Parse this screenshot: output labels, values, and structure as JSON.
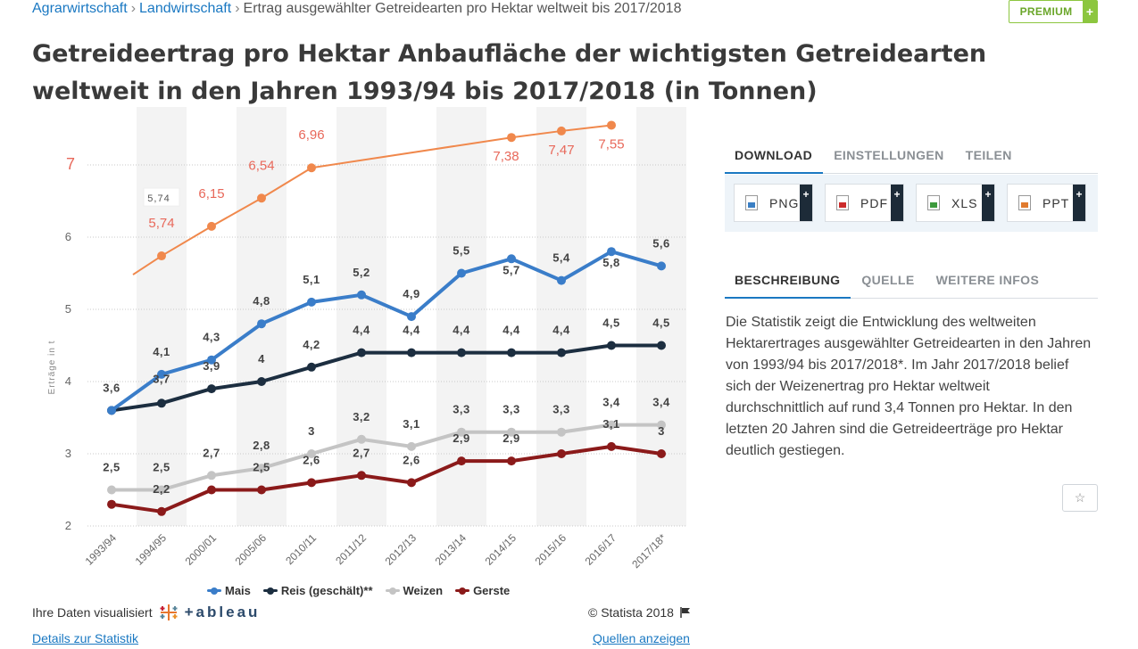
{
  "breadcrumb": {
    "items": [
      "Agrarwirtschaft",
      "Landwirtschaft"
    ],
    "current": "Ertrag ausgewählter Getreidearten pro Hektar weltweit bis 2017/2018"
  },
  "premium": {
    "label": "PREMIUM",
    "plus": "+"
  },
  "title": "Getreideertrag pro Hektar Anbaufläche der wichtigsten Getreidearten weltweit in den Jahren 1993/94 bis 2017/2018 (in Tonnen)",
  "chart_data": {
    "type": "line",
    "categories": [
      "1993/94",
      "1994/95",
      "2000/01",
      "2005/06",
      "2010/11",
      "2011/12",
      "2012/13",
      "2013/14",
      "2014/15",
      "2015/16",
      "2016/17",
      "2017/18*"
    ],
    "ylabel": "Erträge in t",
    "yticks": [
      "2",
      "3",
      "4",
      "5",
      "6",
      "7"
    ],
    "ylim": [
      2,
      7.55
    ],
    "grid": true,
    "legend_position": "bottom",
    "series": [
      {
        "name": "Mais",
        "color": "#3a7dc9",
        "values": [
          3.6,
          4.1,
          4.3,
          4.8,
          5.1,
          5.2,
          4.9,
          5.5,
          5.7,
          5.4,
          5.8,
          5.6
        ],
        "labels": [
          "3,6",
          "4,1",
          "4,3",
          "4,8",
          "5,1",
          "5,2",
          "4,9",
          "5,5",
          "5,7",
          "5,4",
          "5,8",
          "5,6"
        ]
      },
      {
        "name": "Reis (geschält)**",
        "color": "#1c2e40",
        "values": [
          3.6,
          3.7,
          3.9,
          4.0,
          4.2,
          4.4,
          4.4,
          4.4,
          4.4,
          4.4,
          4.5,
          4.5
        ],
        "labels": [
          "",
          "3,7",
          "3,9",
          "4",
          "4,2",
          "4,4",
          "4,4",
          "4,4",
          "4,4",
          "4,4",
          "4,5",
          "4,5"
        ]
      },
      {
        "name": "Weizen",
        "color": "#c4c4c4",
        "values": [
          2.5,
          2.5,
          2.7,
          2.8,
          3.0,
          3.2,
          3.1,
          3.3,
          3.3,
          3.3,
          3.4,
          3.4
        ],
        "labels": [
          "2,5",
          "2,5",
          "2,7",
          "2,8",
          "3",
          "3,2",
          "3,1",
          "3,3",
          "3,3",
          "3,3",
          "3,4",
          "3,4"
        ]
      },
      {
        "name": "Gerste",
        "color": "#8b1a1a",
        "values": [
          2.3,
          2.2,
          2.5,
          2.5,
          2.6,
          2.7,
          2.6,
          2.9,
          2.9,
          3.0,
          3.1,
          3.0
        ],
        "labels": [
          "",
          "2,2",
          "",
          "2,5",
          "2,6",
          "2,7",
          "2,6",
          "2,9",
          "2,9",
          "",
          "3,1",
          "3"
        ]
      }
    ],
    "overlay": {
      "color": "#f0884c",
      "label_color": "#e8685a",
      "values": [
        null,
        5.74,
        6.15,
        6.54,
        6.96,
        null,
        null,
        null,
        7.38,
        7.47,
        7.55,
        null
      ],
      "labels": [
        "",
        "5,74",
        "6,15",
        "6,54",
        "6,96",
        "",
        "",
        "",
        "7,38",
        "7,47",
        "7,55",
        ""
      ],
      "axis_label": "7",
      "box_label": "5,74"
    }
  },
  "legend": {
    "items": [
      {
        "label": "Mais",
        "color": "#3a7dc9"
      },
      {
        "label": "Reis (geschält)**",
        "color": "#1c2e40"
      },
      {
        "label": "Weizen",
        "color": "#c4c4c4"
      },
      {
        "label": "Gerste",
        "color": "#8b1a1a"
      }
    ]
  },
  "footer": {
    "visualized_label": "Ihre Daten visualisiert",
    "tableau_logo": "+ableau",
    "copyright": "© Statista 2018",
    "details_link": "Details zur Statistik",
    "sources_link": "Quellen anzeigen"
  },
  "right_panel": {
    "tabs_top": [
      {
        "label": "DOWNLOAD",
        "active": true
      },
      {
        "label": "EINSTELLUNGEN",
        "active": false
      },
      {
        "label": "TEILEN",
        "active": false
      }
    ],
    "download_buttons": [
      {
        "label": "PNG",
        "icon": "image-file-icon",
        "color": "#3b7fc4"
      },
      {
        "label": "PDF",
        "icon": "pdf-file-icon",
        "color": "#cc2b2b"
      },
      {
        "label": "XLS",
        "icon": "xls-file-icon",
        "color": "#3d9a3d"
      },
      {
        "label": "PPT",
        "icon": "ppt-file-icon",
        "color": "#e07a2e"
      }
    ],
    "plus_label": "+",
    "tabs_bottom": [
      {
        "label": "BESCHREIBUNG",
        "active": true
      },
      {
        "label": "QUELLE",
        "active": false
      },
      {
        "label": "WEITERE INFOS",
        "active": false
      }
    ],
    "description": "Die Statistik zeigt die Entwicklung des weltweiten Hektarertrages ausgewählter Getreidearten in den Jahren von 1993/94 bis 2017/2018*. Im Jahr 2017/2018 belief sich der Weizenertrag pro Hektar weltweit durchschnittlich auf rund 3,4 Tonnen pro Hektar. In den letzten 20 Jahren sind die Getreideerträge pro Hektar deutlich gestiegen."
  }
}
